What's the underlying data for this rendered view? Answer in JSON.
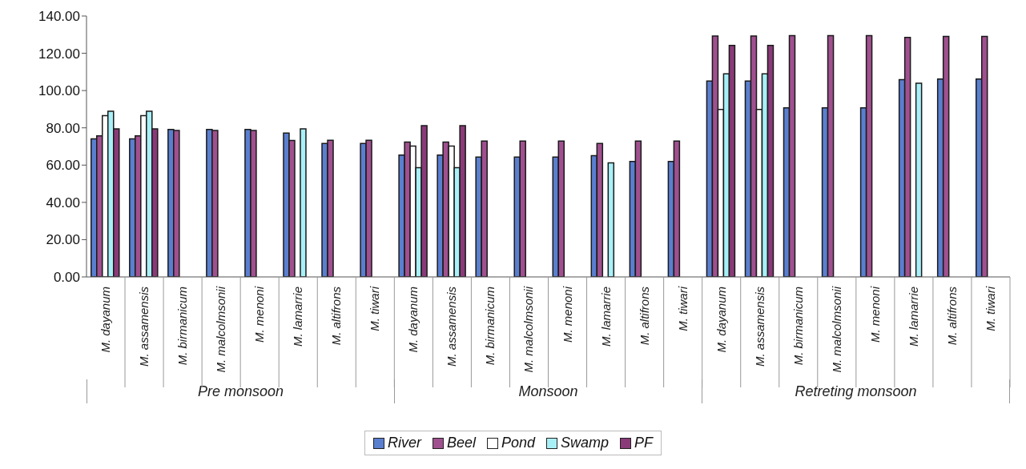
{
  "chart_data": {
    "type": "bar",
    "categories": [
      "M. dayanum",
      "M. assamensis",
      "M. birmanicum",
      "M. malcolmsonii",
      "M. menoni",
      "M. lamarrie",
      "M. altifrons",
      "M. tiwari",
      "M. dayanum",
      "M. assamensis",
      "M. birmanicum",
      "M. malcolmsonii",
      "M. menoni",
      "M. lamarrie",
      "M. altifrons",
      "M. tiwari",
      "M. dayanum",
      "M. assamensis",
      "M. birmanicum",
      "M. malcolmsonii",
      "M. menoni",
      "M. lamarrie",
      "M. altifrons",
      "M. tiwari"
    ],
    "series": [
      {
        "name": "River",
        "color": "#5b7fcf",
        "values": [
          74.1,
          74.1,
          79.1,
          79.1,
          79.1,
          77.2,
          71.6,
          71.6,
          65.4,
          65.4,
          64.3,
          64.3,
          64.3,
          65.1,
          62,
          62,
          105.1,
          105.1,
          90.7,
          90.7,
          90.7,
          105.9,
          106.2,
          106.2
        ]
      },
      {
        "name": "Beel",
        "color": "#a0508f",
        "values": [
          75.7,
          75.7,
          78.6,
          78.6,
          78.6,
          73.2,
          73.3,
          73.3,
          72.4,
          72.4,
          72.9,
          72.9,
          72.9,
          71.6,
          72.9,
          72.9,
          129.3,
          129.3,
          129.5,
          129.5,
          129.5,
          128.5,
          129,
          129
        ]
      },
      {
        "name": "Pond",
        "color": "#ffffff",
        "values": [
          86.5,
          86.5,
          null,
          null,
          null,
          null,
          null,
          null,
          70.2,
          70.2,
          null,
          null,
          null,
          null,
          null,
          null,
          89.9,
          89.9,
          null,
          null,
          null,
          null,
          null,
          null
        ]
      },
      {
        "name": "Swamp",
        "color": "#a8f0f8",
        "values": [
          88.9,
          88.9,
          null,
          null,
          null,
          79.5,
          null,
          null,
          58.6,
          58.6,
          null,
          null,
          null,
          61.2,
          null,
          null,
          109,
          109,
          null,
          null,
          null,
          103.9,
          null,
          null
        ]
      },
      {
        "name": "PF",
        "color": "#8a3a78",
        "values": [
          79.4,
          79.4,
          null,
          null,
          null,
          null,
          null,
          null,
          81.2,
          81.2,
          null,
          null,
          null,
          null,
          null,
          null,
          124.2,
          124.2,
          null,
          null,
          null,
          null,
          null,
          null
        ]
      }
    ],
    "annotations": [
      "Pre monsoon",
      "Monsoon",
      "Retreting monsoon"
    ],
    "ylim": [
      0,
      140
    ],
    "yticks": [
      {
        "value": 0,
        "label": "0.00"
      },
      {
        "value": 20,
        "label": "20.00"
      },
      {
        "value": 40,
        "label": "40.00"
      },
      {
        "value": 60,
        "label": "60.00"
      },
      {
        "value": 80,
        "label": "80.00"
      },
      {
        "value": 100,
        "label": "100.00"
      },
      {
        "value": 120,
        "label": "120.00"
      },
      {
        "value": 140,
        "label": "140.00"
      }
    ],
    "grid": false,
    "legend": "bottom"
  }
}
